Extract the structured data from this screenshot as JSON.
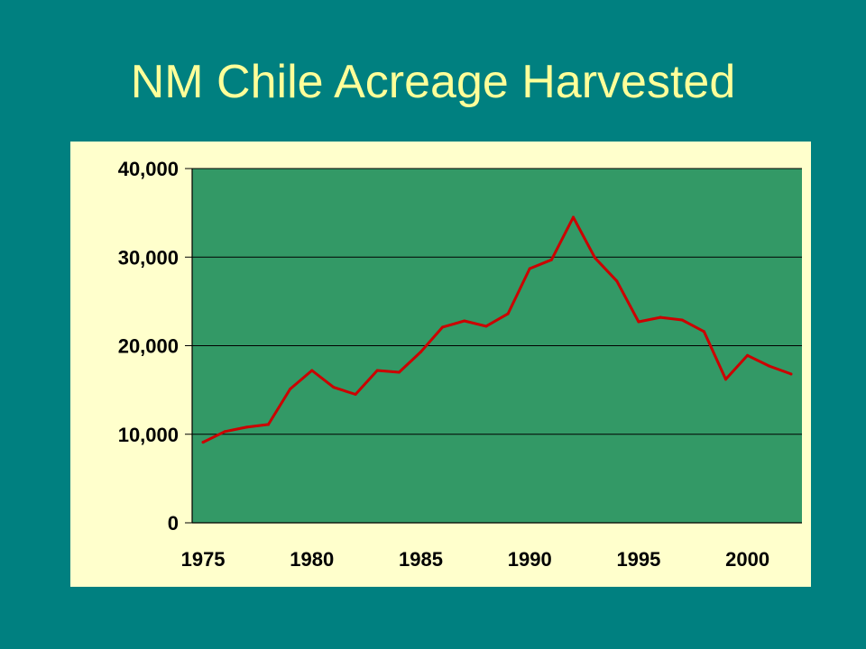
{
  "title": "NM Chile Acreage Harvested",
  "colors": {
    "background": "#008080",
    "title": "#FFFF99",
    "panel": "#FFFFCC",
    "plot_area": "#339966",
    "line": "#CC0000",
    "gridline": "#000000"
  },
  "chart_data": {
    "type": "line",
    "title": "",
    "xlabel": "",
    "ylabel": "",
    "x": [
      1975,
      1976,
      1977,
      1978,
      1979,
      1980,
      1981,
      1982,
      1983,
      1984,
      1985,
      1986,
      1987,
      1988,
      1989,
      1990,
      1991,
      1992,
      1993,
      1994,
      1995,
      1996,
      1997,
      1998,
      1999,
      2000,
      2001,
      2002
    ],
    "series": [
      {
        "values": [
          9100,
          10300,
          10800,
          11100,
          15100,
          17200,
          15300,
          14500,
          17200,
          17000,
          19300,
          22100,
          22800,
          22200,
          23600,
          28700,
          29700,
          34500,
          29900,
          27300,
          22700,
          23200,
          22900,
          21600,
          16200,
          18900,
          17700,
          16800
        ]
      }
    ],
    "xticks": [
      "1975",
      "1980",
      "1985",
      "1990",
      "1995",
      "2000"
    ],
    "yticks": [
      "0",
      "10,000",
      "20,000",
      "30,000",
      "40,000"
    ],
    "xlim": [
      1974.5,
      2002.5
    ],
    "ylim": [
      0,
      40000
    ],
    "grid": true,
    "legend": "none"
  }
}
